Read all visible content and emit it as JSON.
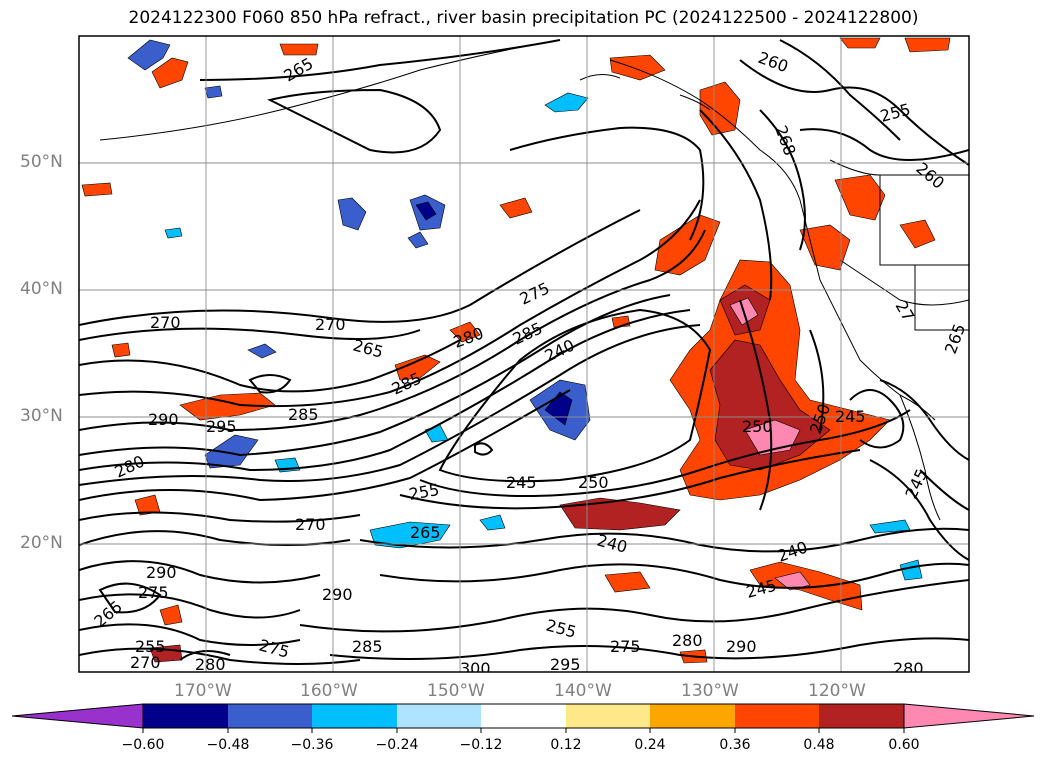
{
  "title": "2024122300 F060 850 hPa refract., river basin precipitation PC (2024122500 - 2024122800)",
  "lat_labels": [
    "50°N",
    "40°N",
    "30°N",
    "20°N"
  ],
  "lon_labels": [
    "170°W",
    "160°W",
    "150°W",
    "140°W",
    "130°W",
    "120°W"
  ],
  "colorbar": {
    "colors": [
      "#9932cc",
      "#00008b",
      "#3a5fcd",
      "#00bfff",
      "#aee4ff",
      "#ffffff",
      "#ffe88a",
      "#ffa500",
      "#ff4500",
      "#b22222",
      "#ff88b0"
    ],
    "ticks": [
      "−0.60",
      "−0.48",
      "−0.36",
      "−0.24",
      "−0.12",
      "0.12",
      "0.24",
      "0.36",
      "0.48",
      "0.60"
    ]
  },
  "contour_labels": [
    "265",
    "260",
    "255",
    "268",
    "260",
    "270",
    "270",
    "275",
    "285",
    "265",
    "280",
    "240",
    "285",
    "290",
    "295",
    "285",
    "250",
    "245",
    "250",
    "280",
    "270",
    "245",
    "250",
    "255",
    "265",
    "240",
    "240",
    "290",
    "245",
    "290",
    "275",
    "265",
    "255",
    "270",
    "280",
    "275",
    "285",
    "300",
    "295",
    "275",
    "280",
    "290",
    "280",
    "255",
    "245",
    "265",
    "27"
  ]
}
